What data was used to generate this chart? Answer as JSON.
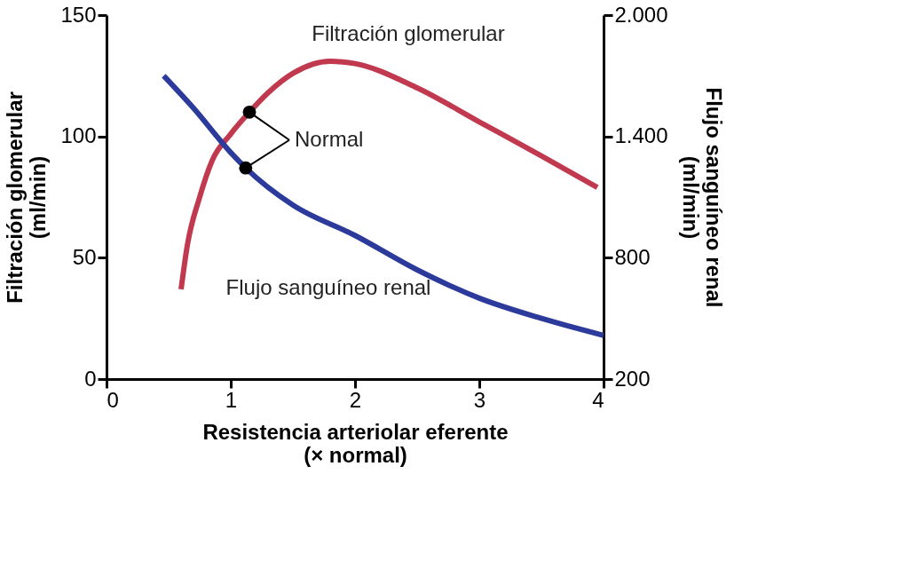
{
  "chart_data": {
    "type": "line",
    "xlabel": "Resistencia arteriolar eferente\n(× normal)",
    "ylabel": "Filtración glomerular\n(ml/min)",
    "y2label": "Flujo sanguíneo renal\n(ml/min)",
    "xlim": [
      0,
      4
    ],
    "xticks": [
      0,
      1,
      2,
      3,
      4
    ],
    "ylim": [
      0,
      150
    ],
    "yticks": [
      0,
      50,
      100,
      150
    ],
    "y2lim": [
      200,
      2000
    ],
    "y2ticks": [
      {
        "value": 200,
        "label": "200"
      },
      {
        "value": 800,
        "label": "800"
      },
      {
        "value": 1400,
        "label": "1.400"
      },
      {
        "value": 2000,
        "label": "2.000"
      }
    ],
    "grid": false,
    "marker": "none",
    "line_style": "solid",
    "series": [
      {
        "name": "Filtración glomerular",
        "color": "#c0394e",
        "x": [
          0.6,
          0.65,
          0.75,
          0.85,
          1.0,
          1.15,
          1.3,
          1.5,
          1.8,
          2.0,
          2.5,
          3.0,
          3.5,
          3.95
        ],
        "values": [
          37,
          55,
          75,
          90,
          101,
          110,
          118,
          126,
          131,
          130,
          120,
          106,
          92,
          79
        ]
      },
      {
        "name": "Flujo sanguíneo renal",
        "color": "#2b3a9b",
        "axis": "y2",
        "x": [
          0.46,
          0.7,
          1.0,
          1.12,
          1.5,
          2.0,
          2.5,
          3.0,
          3.5,
          4.0
        ],
        "values": [
          1700,
          1540,
          1320,
          1244,
          1060,
          910,
          740,
          600,
          500,
          416
        ]
      },
      {
        "color": "#000000",
        "type": "scatter",
        "marker": "circle",
        "x": [
          1.15
        ],
        "values": [
          110
        ]
      },
      {
        "color": "#000000",
        "type": "scatter",
        "marker": "circle",
        "axis": "y2",
        "x": [
          1.12
        ],
        "values": [
          1244
        ]
      }
    ],
    "annotations": [
      {
        "text": "Normal",
        "x": 1.15,
        "y": 110
      }
    ]
  }
}
